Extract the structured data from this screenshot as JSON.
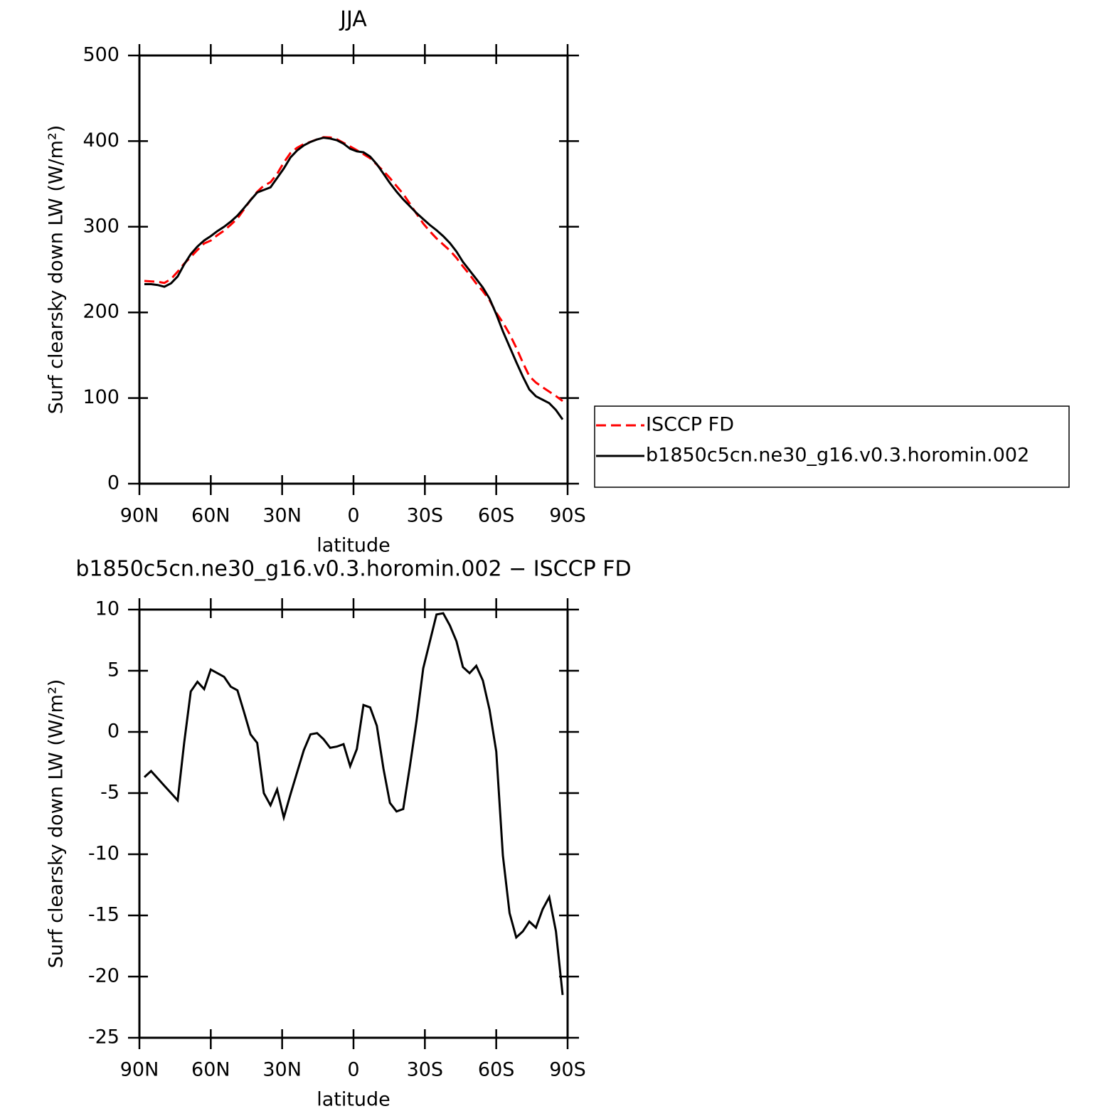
{
  "chart_data": [
    {
      "type": "line",
      "title": "JJA",
      "xlabel": "latitude",
      "ylabel": "Surf clearsky down LW (W/m²)",
      "x": [
        87.9,
        85.1,
        82.3,
        79.5,
        76.7,
        73.9,
        71.2,
        68.4,
        65.6,
        62.8,
        60.0,
        57.2,
        54.4,
        51.6,
        48.8,
        46.0,
        43.3,
        40.5,
        37.7,
        34.9,
        32.1,
        29.3,
        26.5,
        23.7,
        20.9,
        18.1,
        15.3,
        12.6,
        9.8,
        7.0,
        4.2,
        1.4,
        -1.4,
        -4.2,
        -7.0,
        -9.8,
        -12.6,
        -15.3,
        -18.1,
        -20.9,
        -23.7,
        -26.5,
        -29.3,
        -32.1,
        -34.9,
        -37.7,
        -40.5,
        -43.3,
        -46.0,
        -48.8,
        -51.6,
        -54.4,
        -57.2,
        -60.0,
        -62.8,
        -65.6,
        -68.4,
        -71.2,
        -73.9,
        -76.7,
        -79.5,
        -82.3,
        -85.1,
        -87.9
      ],
      "series": [
        {
          "name": "ISCCP FD",
          "color": "#ff0000",
          "dash": "dashed",
          "values": [
            236.7,
            236.2,
            235.8,
            234.4,
            239.0,
            247.6,
            256.9,
            264.7,
            272.9,
            280.5,
            283.9,
            290.2,
            295.5,
            302.3,
            309.6,
            320.4,
            331.2,
            340.9,
            348.0,
            352.0,
            361.7,
            375.0,
            386.1,
            392.3,
            396.5,
            399.2,
            402.1,
            404.6,
            404.3,
            402.2,
            398.0,
            393.8,
            389.4,
            384.8,
            380.0,
            372.5,
            365.0,
            356.8,
            347.5,
            338.3,
            326.8,
            315.1,
            303.8,
            294.6,
            286.4,
            279.3,
            272.3,
            263.6,
            253.7,
            244.2,
            233.6,
            224.8,
            214.2,
            199.6,
            188.1,
            174.8,
            158.8,
            141.3,
            125.5,
            118.0,
            112.5,
            107.5,
            102.3,
            96.5
          ]
        },
        {
          "name": "b1850c5cn.ne30_g16.v0.3.horomin.002",
          "color": "#000000",
          "dash": "solid",
          "values": [
            233,
            233,
            232,
            230,
            234,
            242,
            256,
            268,
            277,
            284,
            289,
            295,
            300,
            306,
            313,
            322,
            331,
            340,
            343,
            346,
            357,
            368,
            381,
            389,
            395,
            399,
            402,
            404,
            403,
            401,
            397,
            391,
            388,
            387,
            382,
            373,
            362,
            351,
            341,
            332,
            324,
            316,
            309,
            302,
            296,
            289,
            281,
            271,
            259,
            249,
            239,
            229,
            216,
            198,
            178,
            160,
            142,
            125,
            110,
            102,
            98,
            94,
            86,
            75
          ]
        }
      ],
      "xlim": [
        90,
        -90
      ],
      "xticks": [
        {
          "value": 90,
          "label": "90N"
        },
        {
          "value": 60,
          "label": "60N"
        },
        {
          "value": 30,
          "label": "30N"
        },
        0,
        {
          "value": -30,
          "label": "30S"
        },
        {
          "value": -60,
          "label": "60S"
        },
        {
          "value": -90,
          "label": "90S"
        }
      ],
      "ylim": [
        0,
        500
      ],
      "yticks": [
        0,
        100,
        200,
        300,
        400,
        500
      ],
      "legend": "right"
    },
    {
      "type": "line",
      "title": "b1850c5cn.ne30_g16.v0.3.horomin.002 − ISCCP FD",
      "xlabel": "latitude",
      "ylabel": "Surf clearsky down LW (W/m²)",
      "x": [
        87.9,
        85.1,
        82.3,
        79.5,
        76.7,
        73.9,
        71.2,
        68.4,
        65.6,
        62.8,
        60.0,
        57.2,
        54.4,
        51.6,
        48.8,
        46.0,
        43.3,
        40.5,
        37.7,
        34.9,
        32.1,
        29.3,
        26.5,
        23.7,
        20.9,
        18.1,
        15.3,
        12.6,
        9.8,
        7.0,
        4.2,
        1.4,
        -1.4,
        -4.2,
        -7.0,
        -9.8,
        -12.6,
        -15.3,
        -18.1,
        -20.9,
        -23.7,
        -26.5,
        -29.3,
        -32.1,
        -34.9,
        -37.7,
        -40.5,
        -43.3,
        -46.0,
        -48.8,
        -51.6,
        -54.4,
        -57.2,
        -60.0,
        -62.8,
        -65.6,
        -68.4,
        -71.2,
        -73.9,
        -76.7,
        -79.5,
        -82.3,
        -85.1,
        -87.9
      ],
      "color": "#000000",
      "values": [
        -3.7,
        -3.2,
        -3.8,
        -4.4,
        -5.0,
        -5.6,
        -0.9,
        3.3,
        4.1,
        3.5,
        5.1,
        4.8,
        4.5,
        3.7,
        3.4,
        1.6,
        -0.2,
        -0.9,
        -5.0,
        -6.0,
        -4.7,
        -7.0,
        -5.1,
        -3.3,
        -1.5,
        -0.2,
        -0.1,
        -0.6,
        -1.3,
        -1.2,
        -1.0,
        -2.8,
        -1.4,
        2.2,
        2.0,
        0.5,
        -3.0,
        -5.8,
        -6.5,
        -6.3,
        -2.8,
        0.9,
        5.2,
        7.4,
        9.6,
        9.7,
        8.7,
        7.4,
        5.3,
        4.8,
        5.4,
        4.2,
        1.8,
        -1.6,
        -10.1,
        -14.8,
        -16.8,
        -16.3,
        -15.5,
        -16.0,
        -14.5,
        -13.5,
        -16.3,
        -21.5
      ],
      "xlim": [
        90,
        -90
      ],
      "xticks": [
        {
          "value": 90,
          "label": "90N"
        },
        {
          "value": 60,
          "label": "60N"
        },
        {
          "value": 30,
          "label": "30N"
        },
        0,
        {
          "value": -30,
          "label": "30S"
        },
        {
          "value": -60,
          "label": "60S"
        },
        {
          "value": -90,
          "label": "90S"
        }
      ],
      "ylim": [
        -25,
        10
      ],
      "yticks": [
        -25,
        -20,
        -15,
        -10,
        -5,
        0,
        5,
        10
      ]
    }
  ]
}
